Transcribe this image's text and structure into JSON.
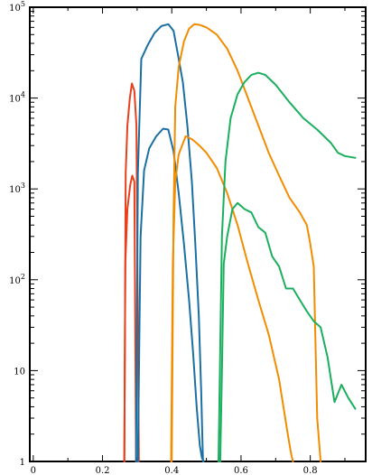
{
  "chart_data": {
    "type": "line",
    "title": "",
    "xlabel": "",
    "ylabel": "",
    "x_scale": "linear",
    "y_scale": "log",
    "xlim": [
      -0.01,
      0.96
    ],
    "ylim": [
      1,
      100000
    ],
    "grid": false,
    "legend": "none",
    "x_ticks": [
      {
        "value": 0,
        "label": "0"
      },
      {
        "value": 0.2,
        "label": "0.2"
      },
      {
        "value": 0.4,
        "label": "0.4"
      },
      {
        "value": 0.6,
        "label": "0.6"
      },
      {
        "value": 0.8,
        "label": "0.8"
      }
    ],
    "y_ticks": [
      {
        "value": 1,
        "base": "1",
        "exp": ""
      },
      {
        "value": 10,
        "base": "10",
        "exp": ""
      },
      {
        "value": 100,
        "base": "10",
        "exp": "2"
      },
      {
        "value": 1000,
        "base": "10",
        "exp": "3"
      },
      {
        "value": 10000,
        "base": "10",
        "exp": "4"
      },
      {
        "value": 100000,
        "base": "10",
        "exp": "5"
      }
    ],
    "series": [
      {
        "color": "#e8401c",
        "x": [
          0.263,
          0.266,
          0.272,
          0.28,
          0.286,
          0.292,
          0.297
        ],
        "y": [
          1,
          150,
          600,
          1100,
          1400,
          1200,
          1
        ]
      },
      {
        "color": "#e8401c",
        "x": [
          0.263,
          0.267,
          0.272,
          0.279,
          0.285,
          0.292,
          0.298,
          0.305
        ],
        "y": [
          1,
          1500,
          5000,
          10000,
          14500,
          12000,
          5000,
          1
        ]
      },
      {
        "color": "#1a6fa3",
        "x": [
          0.297,
          0.302,
          0.312,
          0.33,
          0.35,
          0.37,
          0.39,
          0.405,
          0.418,
          0.432,
          0.445,
          0.458,
          0.468,
          0.478,
          0.485,
          0.49
        ],
        "y": [
          1,
          1500,
          27000,
          38000,
          52000,
          62000,
          65000,
          55000,
          30000,
          15000,
          5000,
          1200,
          250,
          40,
          6,
          1
        ]
      },
      {
        "color": "#1a6fa3",
        "x": [
          0.302,
          0.31,
          0.32,
          0.335,
          0.355,
          0.375,
          0.39,
          0.405,
          0.42,
          0.435,
          0.45,
          0.462,
          0.472,
          0.481,
          0.487,
          0.492
        ],
        "y": [
          1,
          300,
          1600,
          2800,
          3800,
          4600,
          4500,
          2600,
          900,
          250,
          60,
          15,
          4,
          1.5,
          1.1,
          1
        ]
      },
      {
        "color": "#f28c00",
        "x": [
          0.4,
          0.405,
          0.41,
          0.42,
          0.435,
          0.45,
          0.465,
          0.48,
          0.5,
          0.53,
          0.56,
          0.59,
          0.62,
          0.65,
          0.68,
          0.71,
          0.74,
          0.77,
          0.79,
          0.8,
          0.81,
          0.82,
          0.83
        ],
        "y": [
          1,
          500,
          8000,
          22000,
          42000,
          58000,
          65000,
          64000,
          60000,
          50000,
          35000,
          20000,
          10000,
          5000,
          2500,
          1400,
          800,
          550,
          400,
          250,
          140,
          3,
          1
        ]
      },
      {
        "color": "#f28c00",
        "x": [
          0.398,
          0.403,
          0.41,
          0.42,
          0.44,
          0.46,
          0.48,
          0.5,
          0.53,
          0.56,
          0.59,
          0.62,
          0.65,
          0.68,
          0.71,
          0.735,
          0.745,
          0.75
        ],
        "y": [
          1,
          150,
          1200,
          2400,
          3800,
          3500,
          3000,
          2500,
          1700,
          900,
          400,
          150,
          60,
          25,
          8,
          2,
          1.2,
          1
        ]
      },
      {
        "color": "#1aaf5d",
        "x": [
          0.535,
          0.545,
          0.555,
          0.57,
          0.59,
          0.61,
          0.63,
          0.65,
          0.67,
          0.7,
          0.74,
          0.78,
          0.82,
          0.86,
          0.88,
          0.9,
          0.93
        ],
        "y": [
          1,
          300,
          2000,
          6000,
          11000,
          15000,
          18000,
          19000,
          18000,
          14000,
          9000,
          6000,
          4500,
          3200,
          2500,
          2300,
          2200
        ]
      },
      {
        "color": "#1aaf5d",
        "x": [
          0.54,
          0.545,
          0.55,
          0.56,
          0.575,
          0.59,
          0.61,
          0.63,
          0.65,
          0.67,
          0.69,
          0.71,
          0.73,
          0.75,
          0.77,
          0.79,
          0.81,
          0.83,
          0.85,
          0.87,
          0.89,
          0.91,
          0.93
        ],
        "y": [
          1,
          10,
          150,
          300,
          600,
          700,
          600,
          550,
          380,
          330,
          180,
          140,
          80,
          80,
          60,
          45,
          35,
          30,
          14,
          4.5,
          7,
          5,
          3.8
        ]
      }
    ]
  }
}
